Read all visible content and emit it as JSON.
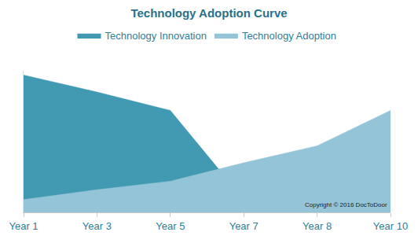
{
  "chart_data": {
    "type": "area",
    "title": "Technology Adoption Curve",
    "categories": [
      "Year 1",
      "Year 3",
      "Year 5",
      "Year 7",
      "Year 8",
      "Year 10"
    ],
    "series": [
      {
        "name": "Technology Innovation",
        "color": "#4199b2",
        "values": [
          97,
          85,
          72,
          9,
          null,
          null
        ]
      },
      {
        "name": "Technology Adoption",
        "color": "#94c4d7",
        "values": [
          9,
          16,
          22,
          35,
          47,
          72
        ]
      }
    ],
    "ylim": [
      0,
      100
    ],
    "grid": false,
    "legend": "top",
    "tick_labels": "x",
    "annotations": [
      "Copyright © 2016 DocToDoor"
    ]
  }
}
